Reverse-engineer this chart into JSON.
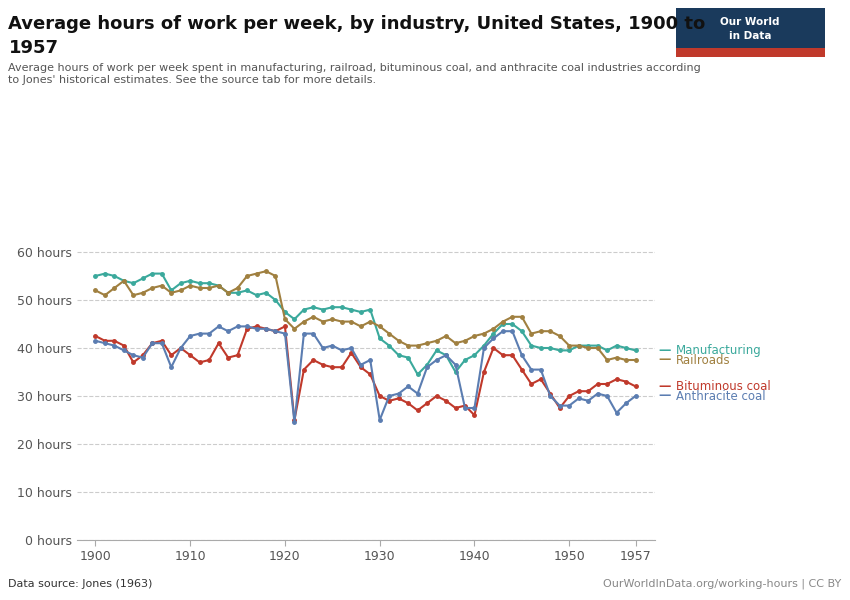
{
  "title_line1": "Average hours of work per week, by industry, United States, 1900 to",
  "title_line2": "1957",
  "subtitle": "Average hours of work per week spent in manufacturing, railroad, bituminous coal, and anthracite coal industries according\nto Jones' historical estimates. See the source tab for more details.",
  "datasource": "Data source: Jones (1963)",
  "copyright": "OurWorldInData.org/working-hours | CC BY",
  "years": [
    1900,
    1901,
    1902,
    1903,
    1904,
    1905,
    1906,
    1907,
    1908,
    1909,
    1910,
    1911,
    1912,
    1913,
    1914,
    1915,
    1916,
    1917,
    1918,
    1919,
    1920,
    1921,
    1922,
    1923,
    1924,
    1925,
    1926,
    1927,
    1928,
    1929,
    1930,
    1931,
    1932,
    1933,
    1934,
    1935,
    1936,
    1937,
    1938,
    1939,
    1940,
    1941,
    1942,
    1943,
    1944,
    1945,
    1946,
    1947,
    1948,
    1949,
    1950,
    1951,
    1952,
    1953,
    1954,
    1955,
    1956,
    1957
  ],
  "manufacturing": [
    55.0,
    55.5,
    55.0,
    54.0,
    53.5,
    54.5,
    55.5,
    55.5,
    52.0,
    53.5,
    54.0,
    53.5,
    53.5,
    53.0,
    51.5,
    51.5,
    52.0,
    51.0,
    51.5,
    50.0,
    47.5,
    46.0,
    48.0,
    48.5,
    48.0,
    48.5,
    48.5,
    48.0,
    47.5,
    48.0,
    42.0,
    40.5,
    38.5,
    38.0,
    34.5,
    36.5,
    39.5,
    38.5,
    35.0,
    37.5,
    38.5,
    40.5,
    43.0,
    45.0,
    45.0,
    43.5,
    40.5,
    40.0,
    40.0,
    39.5,
    39.5,
    40.5,
    40.5,
    40.5,
    39.5,
    40.5,
    40.0,
    39.5
  ],
  "railroads": [
    52.0,
    51.0,
    52.5,
    54.0,
    51.0,
    51.5,
    52.5,
    53.0,
    51.5,
    52.0,
    53.0,
    52.5,
    52.5,
    53.0,
    51.5,
    52.5,
    55.0,
    55.5,
    56.0,
    55.0,
    46.0,
    44.0,
    45.5,
    46.5,
    45.5,
    46.0,
    45.5,
    45.5,
    44.5,
    45.5,
    44.5,
    43.0,
    41.5,
    40.5,
    40.5,
    41.0,
    41.5,
    42.5,
    41.0,
    41.5,
    42.5,
    43.0,
    44.0,
    45.5,
    46.5,
    46.5,
    43.0,
    43.5,
    43.5,
    42.5,
    40.5,
    40.5,
    40.0,
    40.0,
    37.5,
    38.0,
    37.5,
    37.5
  ],
  "bituminous": [
    42.5,
    41.5,
    41.5,
    40.5,
    37.0,
    38.5,
    41.0,
    41.5,
    38.5,
    40.0,
    38.5,
    37.0,
    37.5,
    41.0,
    38.0,
    38.5,
    44.0,
    44.5,
    44.0,
    43.5,
    44.5,
    25.0,
    35.5,
    37.5,
    36.5,
    36.0,
    36.0,
    39.0,
    36.0,
    34.5,
    30.0,
    29.0,
    29.5,
    28.5,
    27.0,
    28.5,
    30.0,
    29.0,
    27.5,
    28.0,
    26.0,
    35.0,
    40.0,
    38.5,
    38.5,
    35.5,
    32.5,
    33.5,
    30.5,
    27.5,
    30.0,
    31.0,
    31.0,
    32.5,
    32.5,
    33.5,
    33.0,
    32.0
  ],
  "anthracite": [
    41.5,
    41.0,
    40.5,
    39.5,
    38.5,
    38.0,
    41.0,
    41.0,
    36.0,
    40.0,
    42.5,
    43.0,
    43.0,
    44.5,
    43.5,
    44.5,
    44.5,
    44.0,
    44.0,
    43.5,
    43.0,
    24.5,
    43.0,
    43.0,
    40.0,
    40.5,
    39.5,
    40.0,
    36.5,
    37.5,
    25.0,
    30.0,
    30.5,
    32.0,
    30.5,
    36.0,
    37.5,
    38.5,
    36.5,
    27.5,
    27.5,
    40.0,
    42.0,
    43.5,
    43.5,
    38.5,
    35.5,
    35.5,
    30.0,
    28.0,
    28.0,
    29.5,
    29.0,
    30.5,
    30.0,
    26.5,
    28.5,
    30.0
  ],
  "color_manufacturing": "#3ba99c",
  "color_railroads": "#a08040",
  "color_bituminous": "#c0392b",
  "color_anthracite": "#5b7db1",
  "ylim": [
    0,
    65
  ],
  "yticks": [
    0,
    10,
    20,
    30,
    40,
    50,
    60
  ],
  "ytick_labels": [
    "0 hours",
    "10 hours",
    "20 hours",
    "30 hours",
    "40 hours",
    "50 hours",
    "60 hours"
  ],
  "xticks": [
    1900,
    1910,
    1920,
    1930,
    1940,
    1950,
    1957
  ],
  "bg_color": "#ffffff"
}
